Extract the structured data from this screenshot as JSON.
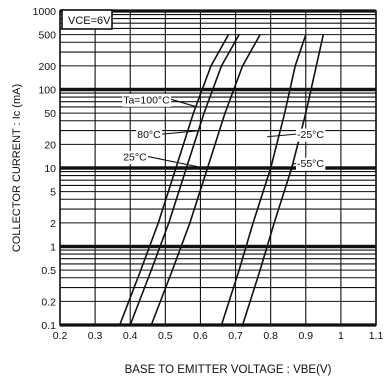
{
  "chart_data": {
    "type": "line",
    "title": "",
    "xlabel": "BASE TO EMITTER VOLTAGE : VBE(V)",
    "ylabel": "COLLECTOR CURRENT : Ic (mA)",
    "x_scale": "linear",
    "y_scale": "log",
    "xlim": [
      0.2,
      1.1
    ],
    "ylim": [
      0.1,
      1000
    ],
    "x_ticks": [
      0.2,
      0.3,
      0.4,
      0.5,
      0.6,
      0.7,
      0.8,
      0.9,
      1.0,
      1.1
    ],
    "x_tick_labels": [
      "0.2",
      "0.3",
      "0.4",
      "0.5",
      "0.6",
      "0.7",
      "0.8",
      "0.9",
      "1",
      "1.1"
    ],
    "y_ticks": [
      0.1,
      0.2,
      0.5,
      1,
      2,
      5,
      10,
      20,
      50,
      100,
      200,
      500,
      1000
    ],
    "y_tick_labels": [
      "0.1",
      "0.2",
      "0.5",
      "1",
      "2",
      "5",
      "10",
      "20",
      "50",
      "100",
      "200",
      "500",
      "1000"
    ],
    "grid": true,
    "condition_label": "VCE=6V",
    "series": [
      {
        "name": "Ta=100°C",
        "x": [
          0.37,
          0.43,
          0.48,
          0.53,
          0.58,
          0.63,
          0.68
        ],
        "y": [
          0.1,
          0.5,
          2,
          10,
          50,
          200,
          500
        ]
      },
      {
        "name": "80°C",
        "x": [
          0.4,
          0.46,
          0.51,
          0.56,
          0.61,
          0.66,
          0.71
        ],
        "y": [
          0.1,
          0.5,
          2,
          10,
          50,
          200,
          500
        ]
      },
      {
        "name": "25°C",
        "x": [
          0.46,
          0.52,
          0.57,
          0.62,
          0.67,
          0.72,
          0.77
        ],
        "y": [
          0.1,
          0.5,
          2,
          10,
          50,
          200,
          500
        ]
      },
      {
        "name": "-25°C",
        "x": [
          0.66,
          0.71,
          0.75,
          0.8,
          0.84,
          0.87,
          0.9
        ],
        "y": [
          0.1,
          0.5,
          2,
          10,
          50,
          200,
          500
        ]
      },
      {
        "name": "-55°C",
        "x": [
          0.72,
          0.77,
          0.81,
          0.86,
          0.9,
          0.93,
          0.95
        ],
        "y": [
          0.1,
          0.5,
          2,
          10,
          50,
          200,
          500
        ]
      }
    ],
    "annotations": [
      {
        "text": "Ta=100°C",
        "x": 0.38,
        "y": 75,
        "target_x": 0.59,
        "target_y": 60
      },
      {
        "text": "80°C",
        "x": 0.42,
        "y": 27,
        "target_x": 0.6,
        "target_y": 30
      },
      {
        "text": "25°C",
        "x": 0.38,
        "y": 14,
        "target_x": 0.61,
        "target_y": 10
      },
      {
        "text": "-25°C",
        "x": 0.875,
        "y": 27,
        "target_x": 0.79,
        "target_y": 25
      },
      {
        "text": "-55°C",
        "x": 0.875,
        "y": 11.5,
        "target_x": 0.86,
        "target_y": 11
      }
    ]
  }
}
